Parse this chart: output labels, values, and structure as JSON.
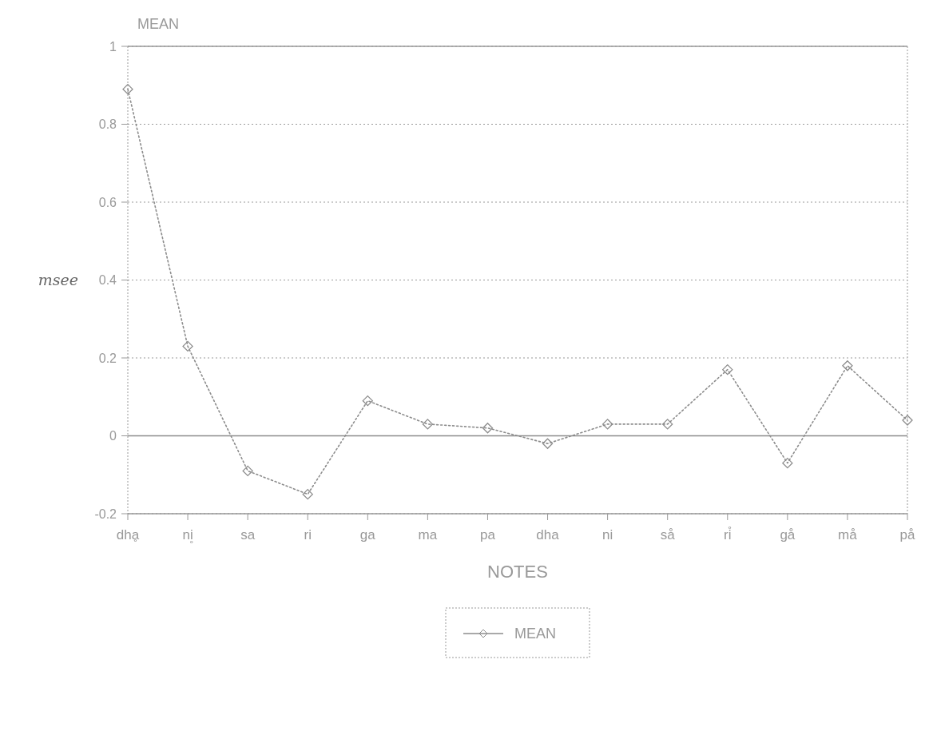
{
  "chart_data": {
    "type": "line",
    "title": "MEAN",
    "xlabel": "NOTES",
    "ylabel": "msee",
    "categories": [
      "dhḁ",
      "ni̥",
      "sa",
      "ri",
      "ga",
      "ma",
      "pa",
      "dha",
      "ni",
      "så",
      "ri̊",
      "gå",
      "må",
      "på"
    ],
    "series": [
      {
        "name": "MEAN",
        "color": "#8c8c8c",
        "values": [
          0.89,
          0.23,
          -0.09,
          -0.15,
          0.09,
          0.03,
          0.02,
          -0.02,
          0.03,
          0.03,
          0.17,
          -0.07,
          0.18,
          0.04
        ]
      }
    ],
    "ylim": [
      -0.2,
      1
    ],
    "yticks": [
      -0.2,
      0,
      0.2,
      0.4,
      0.6,
      0.8,
      1
    ],
    "ref_lines": [
      {
        "axis": "y",
        "value": 0,
        "color": "#8c8c8c",
        "line_style": "solid"
      }
    ],
    "grid": "y",
    "legend": "bottom",
    "marker": "diamond",
    "line_style": "dotted"
  }
}
